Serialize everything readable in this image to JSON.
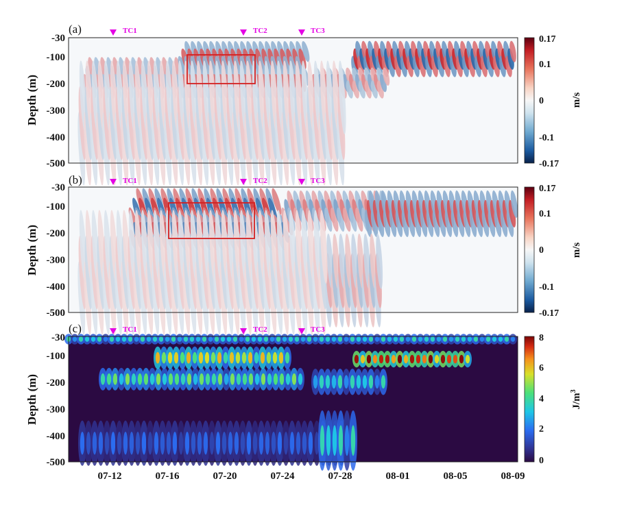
{
  "chart_data": [
    {
      "type": "heatmap",
      "panel": "(a)",
      "ylabel": "Depth (m)",
      "yticks": [
        "-30",
        "-100",
        "-200",
        "-300",
        "-400",
        "-500"
      ],
      "ylim": [
        -500,
        -30
      ],
      "colorbar": {
        "ticks": [
          "0.17",
          "0.1",
          "0",
          "-0.1",
          "-0.17"
        ],
        "range": [
          -0.17,
          0.17
        ],
        "unit": "m/s",
        "colormap": "diverging-blue-white-red"
      },
      "markers": [
        {
          "label": "TC1",
          "date": "07-12"
        },
        {
          "label": "TC2",
          "date": "07-21"
        },
        {
          "label": "TC3",
          "date": "07-25"
        }
      ],
      "box": {
        "t_start": "07-17",
        "t_end": "07-22",
        "depth_top": -90,
        "depth_bottom": -200
      }
    },
    {
      "type": "heatmap",
      "panel": "(b)",
      "ylabel": "Depth (m)",
      "yticks": [
        "-30",
        "-100",
        "-200",
        "-300",
        "-400",
        "-500"
      ],
      "ylim": [
        -500,
        -30
      ],
      "colorbar": {
        "ticks": [
          "0.17",
          "0.1",
          "0",
          "-0.1",
          "-0.17"
        ],
        "range": [
          -0.17,
          0.17
        ],
        "unit": "m/s",
        "colormap": "diverging-blue-white-red"
      },
      "markers": [
        {
          "label": "TC1",
          "date": "07-12"
        },
        {
          "label": "TC2",
          "date": "07-21"
        },
        {
          "label": "TC3",
          "date": "07-25"
        }
      ],
      "box": {
        "t_start": "07-16",
        "t_end": "07-22",
        "depth_top": -80,
        "depth_bottom": -210
      }
    },
    {
      "type": "heatmap",
      "panel": "(c)",
      "ylabel": "Depth (m)",
      "yticks": [
        "-30",
        "-100",
        "-200",
        "-300",
        "-400",
        "-500"
      ],
      "ylim": [
        -500,
        -30
      ],
      "xticks": [
        "07-12",
        "07-16",
        "07-20",
        "07-24",
        "07-28",
        "08-01",
        "08-05",
        "08-09"
      ],
      "colorbar": {
        "ticks": [
          "8",
          "6",
          "4",
          "2",
          "0"
        ],
        "range": [
          0,
          8
        ],
        "unit_base": "J/m",
        "unit_sup": "3",
        "colormap": "jet"
      },
      "markers": [
        {
          "label": "TC1",
          "date": "07-12"
        },
        {
          "label": "TC2",
          "date": "07-21"
        },
        {
          "label": "TC3",
          "date": "07-25"
        }
      ]
    }
  ],
  "colors": {
    "marker": "#e400e4",
    "box": "#d42020",
    "energy_background": "#2b0a42"
  }
}
